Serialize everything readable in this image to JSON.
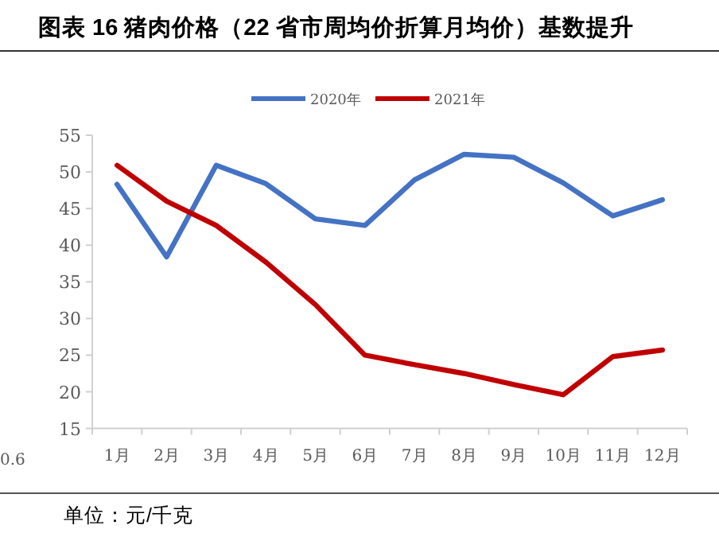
{
  "chart_data": {
    "type": "line",
    "title": "图表 16 猪肉价格（22 省市周均价折算月均价）基数提升",
    "categories": [
      "1月",
      "2月",
      "3月",
      "4月",
      "5月",
      "6月",
      "7月",
      "8月",
      "9月",
      "10月",
      "11月",
      "12月"
    ],
    "series": [
      {
        "name": "2020年",
        "color": "#4472c4",
        "values": [
          48.3,
          38.4,
          50.9,
          48.4,
          43.6,
          42.7,
          48.9,
          52.4,
          52.0,
          48.5,
          44.0,
          46.2
        ]
      },
      {
        "name": "2021年",
        "color": "#c00000",
        "values": [
          50.9,
          46.0,
          42.7,
          37.7,
          31.9,
          25.0,
          23.7,
          22.5,
          21.0,
          19.6,
          24.8,
          25.7
        ]
      }
    ],
    "ylim": [
      15,
      55
    ],
    "yticks": [
      15,
      20,
      25,
      30,
      35,
      40,
      45,
      50,
      55
    ],
    "grid": false,
    "legend": "top",
    "marker": "none",
    "line_style": "solid",
    "annotations": [
      "0.6",
      "单位：元/千克"
    ]
  }
}
